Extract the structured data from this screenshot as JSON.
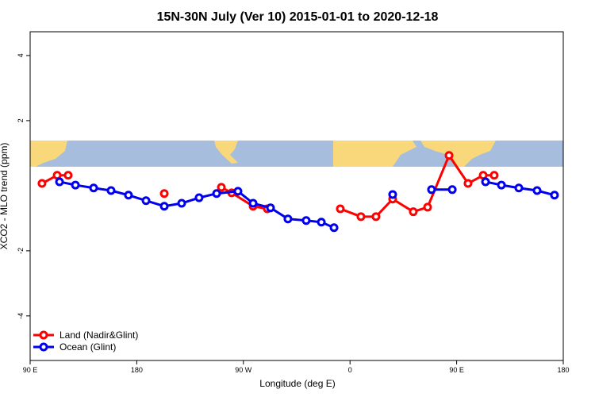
{
  "chart_data": {
    "type": "line",
    "title": "15N-30N July (Ver 10)   2015-01-01 to 2020-12-18",
    "x_label": "Longitude (deg E)",
    "y_label": "XCO2 - MLO trend (ppm)",
    "xlim": [
      90,
      540
    ],
    "xticks": [
      {
        "value": 90,
        "label": "90 E"
      },
      180,
      {
        "value": 270,
        "label": "90 W"
      },
      {
        "value": 360,
        "label": "0"
      },
      {
        "value": 450,
        "label": "90 E"
      },
      {
        "value": 540,
        "label": "180"
      }
    ],
    "ylim": [
      -5.37,
      4.73
    ],
    "yticks": [
      -4,
      -2,
      2,
      4
    ],
    "legend": "bottom-left",
    "series": [
      {
        "name": "Land (Nadir&Glint)",
        "color": "#ff0000",
        "x": [
          100.0,
          112.8,
          122.1,
          null,
          203.2,
          null,
          251.4,
          260.1,
          278.2,
          290.2,
          null,
          351.8,
          369.2,
          381.9,
          396.0,
          413.4,
          425.5,
          443.6,
          459.6,
          472.4,
          481.7
        ],
        "values": [
          0.07,
          0.32,
          0.32,
          null,
          -0.24,
          null,
          -0.05,
          -0.22,
          -0.63,
          -0.71,
          null,
          -0.71,
          -0.95,
          -0.95,
          -0.41,
          -0.8,
          -0.66,
          0.93,
          0.07,
          0.32,
          0.32
        ]
      },
      {
        "name": "Ocean (Glint)",
        "color": "#0000ee",
        "x": [
          114.8,
          128.2,
          143.6,
          158.3,
          173.0,
          187.8,
          203.2,
          217.9,
          232.6,
          247.4,
          265.4,
          278.2,
          292.9,
          307.6,
          323.0,
          335.8,
          346.5,
          null,
          396.0,
          null,
          428.8,
          446.3,
          null,
          474.4,
          487.8,
          502.5,
          517.9,
          532.6
        ],
        "values": [
          0.12,
          0.02,
          -0.07,
          -0.15,
          -0.29,
          -0.46,
          -0.63,
          -0.54,
          -0.37,
          -0.24,
          -0.17,
          -0.54,
          -0.68,
          -1.02,
          -1.07,
          -1.12,
          -1.29,
          null,
          -0.27,
          null,
          -0.12,
          -0.12,
          null,
          0.12,
          0.02,
          -0.07,
          -0.15,
          -0.29
        ]
      }
    ]
  }
}
